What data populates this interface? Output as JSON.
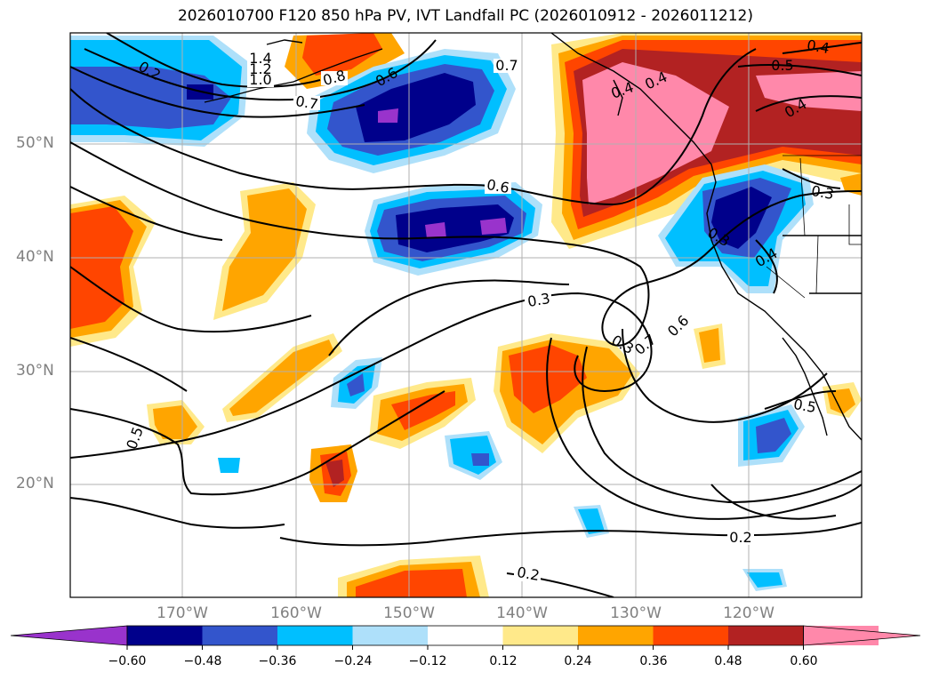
{
  "title": "2026010700 F120 850 hPa PV, IVT Landfall PC (2026010912 - 2026011212)",
  "map": {
    "lat_labels": [
      "50°N",
      "40°N",
      "30°N",
      "20°N"
    ],
    "lon_labels": [
      "170°W",
      "160°W",
      "150°W",
      "140°W",
      "130°W",
      "120°W"
    ],
    "contour_labels": [
      "1.4",
      "1.2",
      "1.0",
      "0.8",
      "0.7",
      "0.7",
      "0.6",
      "0.6",
      "0.5",
      "0.4",
      "0.4",
      "0.4",
      "0.4",
      "0.3",
      "0.3",
      "0.3",
      "0.7",
      "0.6",
      "0.5",
      "0.5",
      "0.2",
      "0.2",
      "0.2",
      "0.4",
      "0.3"
    ]
  },
  "colorbar": {
    "ticks": [
      "−0.60",
      "−0.48",
      "−0.36",
      "−0.24",
      "−0.12",
      "0.12",
      "0.24",
      "0.36",
      "0.48",
      "0.60"
    ],
    "colors": [
      "#9933cc",
      "#00008b",
      "#3355cc",
      "#00bfff",
      "#aee0fa",
      "#ffffff",
      "#ffe98a",
      "#ffa500",
      "#ff4500",
      "#b22222",
      "#ff88aa",
      "#ff88aa"
    ]
  }
}
